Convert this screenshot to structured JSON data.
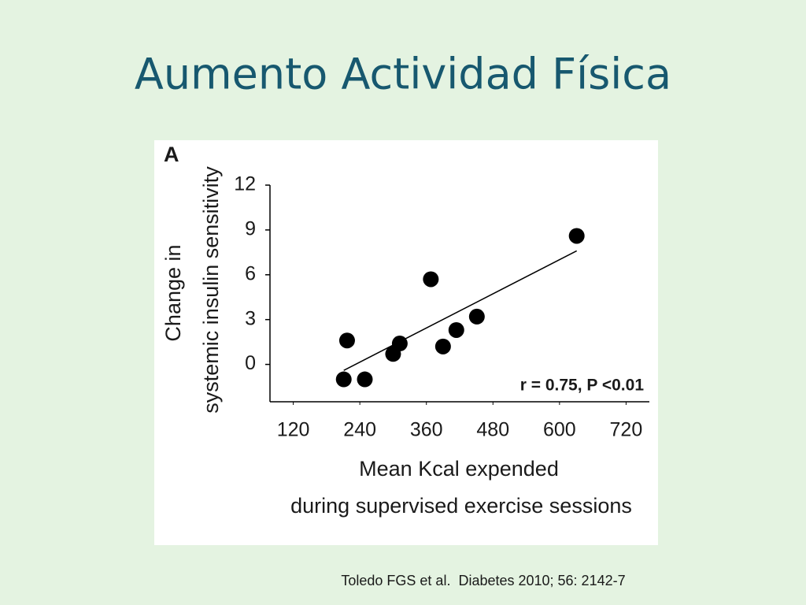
{
  "chart_data": {
    "type": "scatter",
    "title": "Aumento Actividad Física",
    "panel_label": "A",
    "xlabel": [
      "Mean Kcal expended",
      "during supervised exercise sessions"
    ],
    "ylabel": [
      "Change in",
      "systemic insulin sensitivity"
    ],
    "annotation": "r = 0.75, P <0.01",
    "x": [
      211,
      217,
      249,
      300,
      312,
      368,
      390,
      414,
      451,
      631
    ],
    "y": [
      -1.0,
      1.6,
      -1.0,
      0.7,
      1.4,
      5.7,
      1.2,
      2.3,
      3.2,
      8.6
    ],
    "color": "#000000",
    "trendline": {
      "x": [
        211,
        631
      ],
      "y": [
        -0.4,
        7.6
      ]
    },
    "xlim": [
      78,
      762
    ],
    "ylim": [
      -2.5,
      12
    ],
    "xticks": [
      120,
      240,
      360,
      480,
      600,
      720
    ],
    "yticks": [
      0,
      3,
      6,
      9,
      12
    ]
  },
  "citation": "Toledo FGS et al.  Diabetes 2010; 56: 2142-7"
}
